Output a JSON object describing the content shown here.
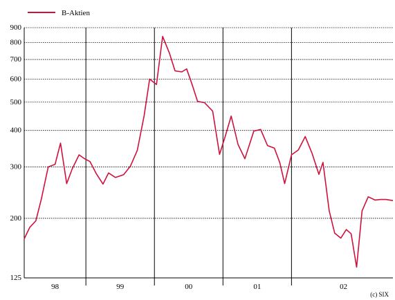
{
  "chart_data": {
    "type": "line",
    "title": "",
    "xlabel": "",
    "ylabel": "",
    "y_scale": "log",
    "ylim": [
      125,
      900
    ],
    "y_ticks": [
      125,
      200,
      300,
      400,
      500,
      600,
      700,
      800,
      900
    ],
    "x_ticks": [
      "98",
      "99",
      "00",
      "01",
      "02"
    ],
    "xlim": [
      1997.6,
      2002.98
    ],
    "year_dividers": [
      1998.5,
      1999.5,
      2000.5,
      2001.5
    ],
    "legend": {
      "placement": "top-left",
      "entries": [
        "B-Aktien"
      ]
    },
    "grid": {
      "horizontal": "dotted",
      "vertical": "solid at year boundaries"
    },
    "credit": "(c) SIX",
    "colors": {
      "series": "#d0103a",
      "axis": "#000000"
    },
    "series": [
      {
        "name": "B-Aktien",
        "x": [
          1997.6,
          1997.68,
          1997.77,
          1997.85,
          1997.95,
          1998.05,
          1998.13,
          1998.22,
          1998.3,
          1998.4,
          1998.48,
          1998.56,
          1998.65,
          1998.75,
          1998.83,
          1998.93,
          1999.05,
          1999.15,
          1999.25,
          1999.35,
          1999.43,
          1999.53,
          1999.62,
          1999.72,
          1999.8,
          1999.9,
          1999.97,
          2000.05,
          2000.13,
          2000.23,
          2000.35,
          2000.45,
          2000.53,
          2000.62,
          2000.72,
          2000.82,
          2000.95,
          2001.05,
          2001.15,
          2001.25,
          2001.33,
          2001.4,
          2001.5,
          2001.6,
          2001.7,
          2001.8,
          2001.9,
          2001.96,
          2002.05,
          2002.13,
          2002.22,
          2002.3,
          2002.37,
          2002.45,
          2002.53,
          2002.62,
          2002.72,
          2002.8,
          2002.88,
          2002.98
        ],
        "y": [
          170,
          186,
          196,
          233,
          300,
          306,
          362,
          263,
          295,
          330,
          320,
          313,
          285,
          262,
          286,
          276,
          282,
          302,
          342,
          450,
          600,
          575,
          840,
          735,
          640,
          635,
          650,
          575,
          503,
          498,
          466,
          331,
          380,
          448,
          358,
          320,
          398,
          403,
          355,
          348,
          310,
          263,
          330,
          343,
          381,
          334,
          283,
          311,
          212,
          178,
          171,
          183,
          177,
          136,
          212,
          237,
          231,
          232,
          232,
          230
        ]
      }
    ]
  }
}
